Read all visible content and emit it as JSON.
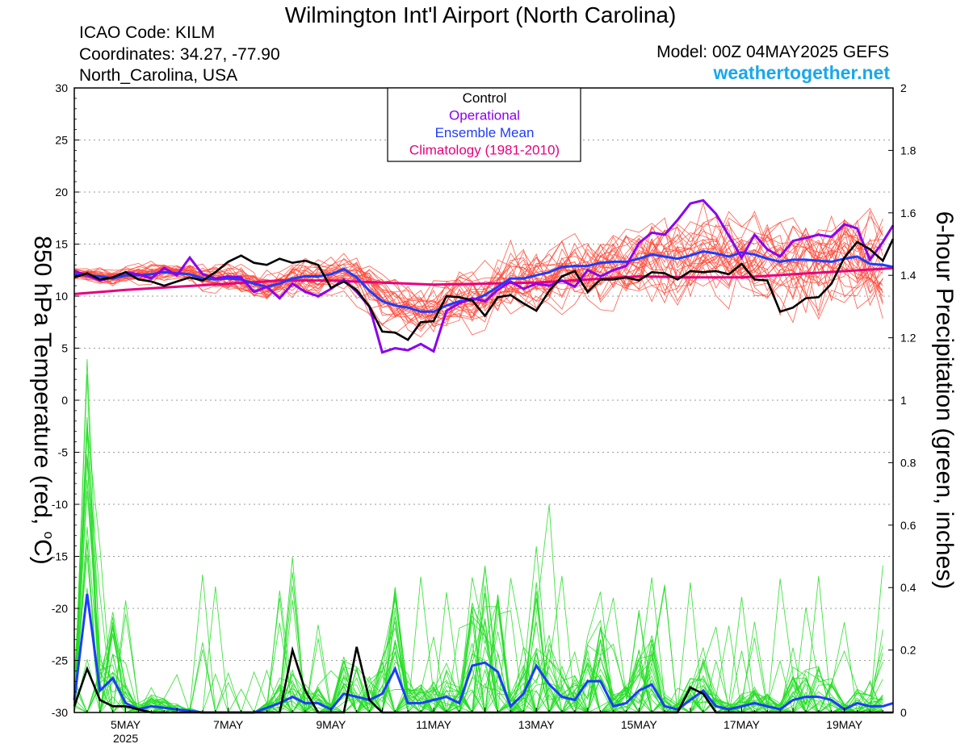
{
  "header": {
    "title": "Wilmington Int'l Airport (North Carolina)",
    "icao": "ICAO Code: KILM",
    "coords": "Coordinates: 34.27, -77.90",
    "region": "North_Carolina, USA",
    "model": "Model: 00Z 04MAY2025 GEFS",
    "site": "weathertogether.net"
  },
  "chart_data": {
    "type": "line",
    "left_axis": {
      "label": "850 hPa Temperature (red, °C)",
      "label_main": "850 hPa Temperature (red, ",
      "label_deg": "o",
      "label_end": "C)",
      "range": [
        -30,
        30
      ],
      "ticks": [
        30,
        25,
        20,
        15,
        10,
        5,
        0,
        -5,
        -10,
        -15,
        -20,
        -25,
        -30
      ]
    },
    "right_axis": {
      "label": "6-hour Precipitation (green, inches)",
      "range": [
        0,
        2
      ],
      "ticks": [
        "2",
        "1.8",
        "1.6",
        "1.4",
        "1.2",
        "1",
        "0.8",
        "0.6",
        "0.4",
        "0.2",
        "0"
      ]
    },
    "x_axis": {
      "range_days": [
        4.0,
        19.95
      ],
      "ticks": [
        {
          "day": 5,
          "label": "5MAY",
          "sub": "2025"
        },
        {
          "day": 7,
          "label": "7MAY",
          "sub": ""
        },
        {
          "day": 9,
          "label": "9MAY",
          "sub": ""
        },
        {
          "day": 11,
          "label": "11MAY",
          "sub": ""
        },
        {
          "day": 13,
          "label": "13MAY",
          "sub": ""
        },
        {
          "day": 15,
          "label": "15MAY",
          "sub": ""
        },
        {
          "day": 17,
          "label": "17MAY",
          "sub": ""
        },
        {
          "day": 19,
          "label": "19MAY",
          "sub": ""
        }
      ]
    },
    "grid": true,
    "legend": {
      "position": "top-center",
      "items": [
        {
          "label": "Control",
          "color": "#000000"
        },
        {
          "label": "Operational",
          "color": "#8b00ee"
        },
        {
          "label": "Ensemble Mean",
          "color": "#1e3cff"
        },
        {
          "label": "Climatology (1981-2010)",
          "color": "#e6007e"
        }
      ]
    },
    "colors": {
      "control": "#000000",
      "operational": "#8b00ee",
      "mean": "#1e3cff",
      "climatology": "#e6007e",
      "members_temp": "#ff4a3a",
      "members_precip": "#22dd22"
    },
    "temperature": {
      "control": [
        [
          4.0,
          11.8
        ],
        [
          4.25,
          12.2
        ],
        [
          4.5,
          11.6
        ],
        [
          4.75,
          11.8
        ],
        [
          5.0,
          12.3
        ],
        [
          5.25,
          11.6
        ],
        [
          5.5,
          11.4
        ],
        [
          5.75,
          11.0
        ],
        [
          6.0,
          11.4
        ],
        [
          6.25,
          11.8
        ],
        [
          6.5,
          11.5
        ],
        [
          6.75,
          12.3
        ],
        [
          7.0,
          13.3
        ],
        [
          7.25,
          13.9
        ],
        [
          7.5,
          13.2
        ],
        [
          7.75,
          13.0
        ],
        [
          8.0,
          13.6
        ],
        [
          8.25,
          13.2
        ],
        [
          8.5,
          13.4
        ],
        [
          8.75,
          13.0
        ],
        [
          9.0,
          10.8
        ],
        [
          9.25,
          11.4
        ],
        [
          9.5,
          10.6
        ],
        [
          9.75,
          9.0
        ],
        [
          10.0,
          6.6
        ],
        [
          10.25,
          6.5
        ],
        [
          10.5,
          5.8
        ],
        [
          10.75,
          7.5
        ],
        [
          11.0,
          7.6
        ],
        [
          11.25,
          10.0
        ],
        [
          11.5,
          9.9
        ],
        [
          11.75,
          9.6
        ],
        [
          12.0,
          8.1
        ],
        [
          12.25,
          9.9
        ],
        [
          12.5,
          10.1
        ],
        [
          12.75,
          9.3
        ],
        [
          13.0,
          8.6
        ],
        [
          13.25,
          10.5
        ],
        [
          13.5,
          11.9
        ],
        [
          13.75,
          12.4
        ],
        [
          14.0,
          10.4
        ],
        [
          14.25,
          11.6
        ],
        [
          14.5,
          11.6
        ],
        [
          14.75,
          11.8
        ],
        [
          15.0,
          11.5
        ],
        [
          15.25,
          12.3
        ],
        [
          15.5,
          12.2
        ],
        [
          15.75,
          11.6
        ],
        [
          16.0,
          12.4
        ],
        [
          16.25,
          12.3
        ],
        [
          16.5,
          12.4
        ],
        [
          16.75,
          12.1
        ],
        [
          17.0,
          13.1
        ],
        [
          17.25,
          11.6
        ],
        [
          17.5,
          11.5
        ],
        [
          17.75,
          8.5
        ],
        [
          18.0,
          8.9
        ],
        [
          18.25,
          9.8
        ],
        [
          18.5,
          9.9
        ],
        [
          18.75,
          11.2
        ],
        [
          19.0,
          13.7
        ],
        [
          19.25,
          15.2
        ],
        [
          19.5,
          14.5
        ],
        [
          19.75,
          13.4
        ],
        [
          19.95,
          15.5
        ]
      ],
      "operational": [
        [
          4.0,
          12.4
        ],
        [
          4.25,
          12.0
        ],
        [
          4.5,
          11.5
        ],
        [
          4.75,
          11.8
        ],
        [
          5.0,
          12.3
        ],
        [
          5.25,
          12.1
        ],
        [
          5.5,
          11.7
        ],
        [
          5.75,
          12.7
        ],
        [
          6.0,
          12.0
        ],
        [
          6.25,
          13.7
        ],
        [
          6.5,
          12.1
        ],
        [
          6.75,
          11.7
        ],
        [
          7.0,
          11.9
        ],
        [
          7.25,
          11.8
        ],
        [
          7.5,
          10.4
        ],
        [
          7.75,
          10.9
        ],
        [
          8.0,
          9.8
        ],
        [
          8.25,
          11.2
        ],
        [
          8.5,
          10.4
        ],
        [
          8.75,
          10.0
        ],
        [
          9.0,
          10.7
        ],
        [
          9.25,
          11.6
        ],
        [
          9.5,
          10.4
        ],
        [
          9.75,
          9.0
        ],
        [
          10.0,
          4.6
        ],
        [
          10.25,
          5.0
        ],
        [
          10.5,
          4.8
        ],
        [
          10.75,
          5.4
        ],
        [
          11.0,
          4.7
        ],
        [
          11.25,
          8.6
        ],
        [
          11.5,
          9.3
        ],
        [
          11.75,
          9.8
        ],
        [
          12.0,
          9.5
        ],
        [
          12.25,
          10.6
        ],
        [
          12.5,
          11.4
        ],
        [
          12.75,
          10.7
        ],
        [
          13.0,
          11.2
        ],
        [
          13.25,
          11.0
        ],
        [
          13.5,
          11.5
        ],
        [
          13.75,
          10.9
        ],
        [
          14.0,
          12.5
        ],
        [
          14.25,
          11.9
        ],
        [
          14.5,
          12.5
        ],
        [
          14.75,
          12.9
        ],
        [
          15.0,
          15.1
        ],
        [
          15.25,
          16.1
        ],
        [
          15.5,
          15.9
        ],
        [
          15.75,
          17.3
        ],
        [
          16.0,
          18.9
        ],
        [
          16.25,
          19.2
        ],
        [
          16.5,
          17.9
        ],
        [
          16.75,
          15.8
        ],
        [
          17.0,
          13.7
        ],
        [
          17.25,
          15.9
        ],
        [
          17.5,
          14.5
        ],
        [
          17.75,
          13.8
        ],
        [
          18.0,
          15.3
        ],
        [
          18.25,
          15.6
        ],
        [
          18.5,
          15.9
        ],
        [
          18.75,
          15.7
        ],
        [
          19.0,
          16.9
        ],
        [
          19.25,
          16.5
        ],
        [
          19.5,
          13.5
        ],
        [
          19.75,
          15.2
        ],
        [
          19.95,
          16.8
        ]
      ],
      "ensemble_mean": [
        [
          4.0,
          12.1
        ],
        [
          4.25,
          12.0
        ],
        [
          4.5,
          11.9
        ],
        [
          4.75,
          11.7
        ],
        [
          5.0,
          12.0
        ],
        [
          5.25,
          12.0
        ],
        [
          5.5,
          12.1
        ],
        [
          5.75,
          12.3
        ],
        [
          6.0,
          12.2
        ],
        [
          6.25,
          12.1
        ],
        [
          6.5,
          11.7
        ],
        [
          6.75,
          11.6
        ],
        [
          7.0,
          11.7
        ],
        [
          7.25,
          11.6
        ],
        [
          7.5,
          11.2
        ],
        [
          7.75,
          10.9
        ],
        [
          8.0,
          11.2
        ],
        [
          8.25,
          11.7
        ],
        [
          8.5,
          11.9
        ],
        [
          8.75,
          11.9
        ],
        [
          9.0,
          12.1
        ],
        [
          9.25,
          12.6
        ],
        [
          9.5,
          11.8
        ],
        [
          9.75,
          10.5
        ],
        [
          10.0,
          9.5
        ],
        [
          10.25,
          9.1
        ],
        [
          10.5,
          8.9
        ],
        [
          10.75,
          8.5
        ],
        [
          11.0,
          8.5
        ],
        [
          11.25,
          9.1
        ],
        [
          11.5,
          9.5
        ],
        [
          11.75,
          9.6
        ],
        [
          12.0,
          10.1
        ],
        [
          12.25,
          10.9
        ],
        [
          12.5,
          11.7
        ],
        [
          12.75,
          11.7
        ],
        [
          13.0,
          12.0
        ],
        [
          13.25,
          12.3
        ],
        [
          13.5,
          12.8
        ],
        [
          13.75,
          12.9
        ],
        [
          14.0,
          12.9
        ],
        [
          14.25,
          13.2
        ],
        [
          14.5,
          13.3
        ],
        [
          14.75,
          13.3
        ],
        [
          15.0,
          13.6
        ],
        [
          15.25,
          14.0
        ],
        [
          15.5,
          13.8
        ],
        [
          15.75,
          13.6
        ],
        [
          16.0,
          13.9
        ],
        [
          16.25,
          14.3
        ],
        [
          16.5,
          14.1
        ],
        [
          16.75,
          13.8
        ],
        [
          17.0,
          14.2
        ],
        [
          17.25,
          14.0
        ],
        [
          17.5,
          13.6
        ],
        [
          17.75,
          13.3
        ],
        [
          18.0,
          13.5
        ],
        [
          18.25,
          13.5
        ],
        [
          18.5,
          13.4
        ],
        [
          18.75,
          13.3
        ],
        [
          19.0,
          13.6
        ],
        [
          19.25,
          13.8
        ],
        [
          19.5,
          13.1
        ],
        [
          19.75,
          13.0
        ],
        [
          19.95,
          12.8
        ]
      ],
      "climatology": [
        [
          4.0,
          10.2
        ],
        [
          5.0,
          10.6
        ],
        [
          6.0,
          10.9
        ],
        [
          7.0,
          11.2
        ],
        [
          8.0,
          11.5
        ],
        [
          9.0,
          11.5
        ],
        [
          10.0,
          11.3
        ],
        [
          11.0,
          11.1
        ],
        [
          12.0,
          11.2
        ],
        [
          13.0,
          11.3
        ],
        [
          14.0,
          11.6
        ],
        [
          15.0,
          11.9
        ],
        [
          16.0,
          11.8
        ],
        [
          17.0,
          11.8
        ],
        [
          18.0,
          12.1
        ],
        [
          19.0,
          12.4
        ],
        [
          19.95,
          12.7
        ]
      ]
    },
    "precipitation": {
      "control": [
        [
          4.0,
          0.02
        ],
        [
          4.25,
          0.14
        ],
        [
          4.5,
          0.04
        ],
        [
          4.75,
          0.02
        ],
        [
          5.0,
          0.02
        ],
        [
          5.5,
          0.0
        ],
        [
          8.0,
          0.0
        ],
        [
          8.25,
          0.2
        ],
        [
          8.5,
          0.07
        ],
        [
          8.75,
          0.0
        ],
        [
          9.25,
          0.0
        ],
        [
          9.5,
          0.21
        ],
        [
          9.75,
          0.04
        ],
        [
          10.0,
          0.0
        ],
        [
          15.75,
          0.0
        ],
        [
          16.0,
          0.08
        ],
        [
          16.25,
          0.06
        ],
        [
          16.5,
          0.0
        ],
        [
          19.95,
          0.0
        ]
      ],
      "ensemble_mean": [
        [
          4.0,
          0.04
        ],
        [
          4.25,
          0.38
        ],
        [
          4.5,
          0.07
        ],
        [
          4.75,
          0.11
        ],
        [
          5.0,
          0.03
        ],
        [
          5.25,
          0.01
        ],
        [
          5.5,
          0.02
        ],
        [
          6.0,
          0.01
        ],
        [
          6.5,
          0.0
        ],
        [
          7.0,
          0.0
        ],
        [
          7.5,
          0.0
        ],
        [
          8.0,
          0.03
        ],
        [
          8.25,
          0.05
        ],
        [
          8.5,
          0.03
        ],
        [
          8.75,
          0.03
        ],
        [
          9.0,
          0.01
        ],
        [
          9.25,
          0.06
        ],
        [
          9.5,
          0.05
        ],
        [
          9.75,
          0.04
        ],
        [
          10.0,
          0.06
        ],
        [
          10.25,
          0.14
        ],
        [
          10.5,
          0.03
        ],
        [
          10.75,
          0.03
        ],
        [
          11.0,
          0.04
        ],
        [
          11.25,
          0.05
        ],
        [
          11.5,
          0.03
        ],
        [
          11.75,
          0.15
        ],
        [
          12.0,
          0.16
        ],
        [
          12.25,
          0.13
        ],
        [
          12.5,
          0.02
        ],
        [
          12.75,
          0.06
        ],
        [
          13.0,
          0.15
        ],
        [
          13.25,
          0.09
        ],
        [
          13.5,
          0.05
        ],
        [
          13.75,
          0.04
        ],
        [
          14.0,
          0.1
        ],
        [
          14.25,
          0.1
        ],
        [
          14.5,
          0.02
        ],
        [
          14.75,
          0.03
        ],
        [
          15.0,
          0.07
        ],
        [
          15.25,
          0.09
        ],
        [
          15.5,
          0.02
        ],
        [
          15.75,
          0.01
        ],
        [
          16.0,
          0.04
        ],
        [
          16.25,
          0.07
        ],
        [
          16.5,
          0.02
        ],
        [
          16.75,
          0.01
        ],
        [
          17.0,
          0.02
        ],
        [
          17.25,
          0.03
        ],
        [
          17.5,
          0.02
        ],
        [
          17.75,
          0.01
        ],
        [
          18.0,
          0.04
        ],
        [
          18.25,
          0.05
        ],
        [
          18.5,
          0.05
        ],
        [
          18.75,
          0.04
        ],
        [
          19.0,
          0.01
        ],
        [
          19.25,
          0.03
        ],
        [
          19.5,
          0.02
        ],
        [
          19.75,
          0.02
        ],
        [
          19.95,
          0.03
        ]
      ]
    }
  }
}
